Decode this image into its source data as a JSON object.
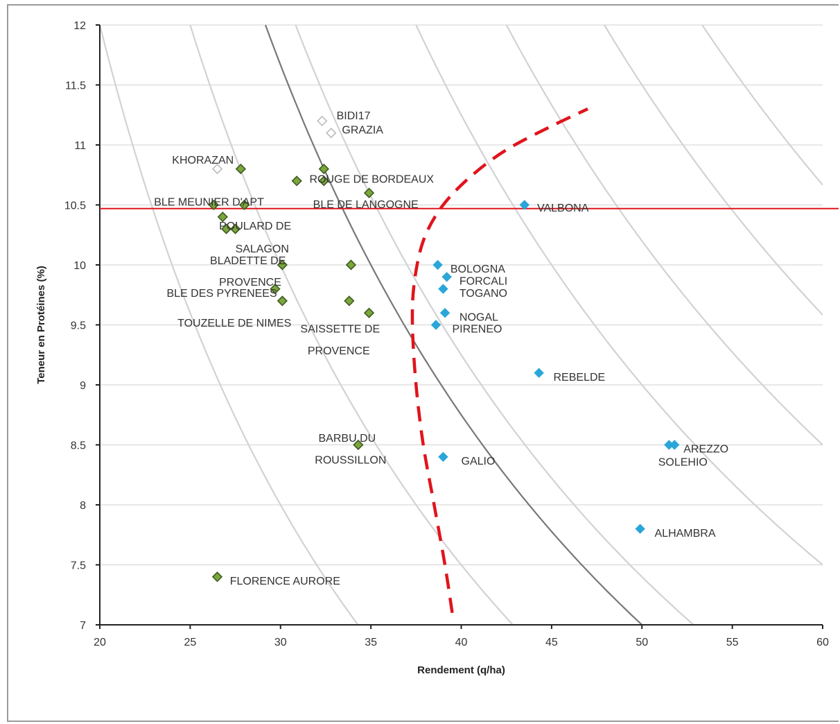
{
  "chart_data": {
    "type": "scatter",
    "xlabel": "Rendement (q/ha)",
    "ylabel": "Teneur en Protéines (%)",
    "xlim": [
      20,
      60
    ],
    "ylim": [
      7,
      12
    ],
    "x_ticks": [
      "20",
      "25",
      "30",
      "35",
      "40",
      "45",
      "50",
      "55",
      "60"
    ],
    "y_ticks": [
      "7",
      "7.5",
      "8",
      "8.5",
      "9",
      "9.5",
      "10",
      "10.5",
      "11",
      "11.5",
      "12"
    ],
    "grid": "horizontal",
    "colors": {
      "green": "#7aa63e",
      "blue": "#2aa6d9",
      "hollow": "#bbbbbb",
      "red": "#e0141c",
      "dark_curve": "#777777",
      "light_curve": "#d2d2d2"
    },
    "reference_line_y": 10.47,
    "points": [
      {
        "x": 32.3,
        "y": 11.2,
        "group": "hollow"
      },
      {
        "x": 32.8,
        "y": 11.1,
        "group": "hollow"
      },
      {
        "x": 26.5,
        "y": 10.8,
        "group": "hollow"
      },
      {
        "x": 27.8,
        "y": 10.8,
        "group": "green"
      },
      {
        "x": 30.9,
        "y": 10.7,
        "group": "green"
      },
      {
        "x": 32.4,
        "y": 10.8,
        "group": "green"
      },
      {
        "x": 32.4,
        "y": 10.7,
        "group": "green"
      },
      {
        "x": 34.9,
        "y": 10.6,
        "group": "green"
      },
      {
        "x": 26.3,
        "y": 10.5,
        "group": "green"
      },
      {
        "x": 28.0,
        "y": 10.5,
        "group": "green"
      },
      {
        "x": 26.8,
        "y": 10.4,
        "group": "green"
      },
      {
        "x": 27.0,
        "y": 10.3,
        "group": "green"
      },
      {
        "x": 27.5,
        "y": 10.3,
        "group": "green"
      },
      {
        "x": 30.1,
        "y": 10.0,
        "group": "green"
      },
      {
        "x": 33.9,
        "y": 10.0,
        "group": "green"
      },
      {
        "x": 29.7,
        "y": 9.8,
        "group": "green"
      },
      {
        "x": 30.1,
        "y": 9.7,
        "group": "green"
      },
      {
        "x": 33.8,
        "y": 9.7,
        "group": "green"
      },
      {
        "x": 34.9,
        "y": 9.6,
        "group": "green"
      },
      {
        "x": 34.3,
        "y": 8.5,
        "group": "green"
      },
      {
        "x": 26.5,
        "y": 7.4,
        "group": "green"
      },
      {
        "x": 43.5,
        "y": 10.5,
        "group": "blue"
      },
      {
        "x": 38.7,
        "y": 10.0,
        "group": "blue"
      },
      {
        "x": 39.2,
        "y": 9.9,
        "group": "blue"
      },
      {
        "x": 39.0,
        "y": 9.8,
        "group": "blue"
      },
      {
        "x": 39.1,
        "y": 9.6,
        "group": "blue"
      },
      {
        "x": 38.6,
        "y": 9.5,
        "group": "blue"
      },
      {
        "x": 44.3,
        "y": 9.1,
        "group": "blue"
      },
      {
        "x": 39.0,
        "y": 8.4,
        "group": "blue"
      },
      {
        "x": 51.5,
        "y": 8.5,
        "group": "blue"
      },
      {
        "x": 51.8,
        "y": 8.5,
        "group": "blue"
      },
      {
        "x": 49.9,
        "y": 7.8,
        "group": "blue"
      }
    ],
    "labels": [
      {
        "text": "BIDI17",
        "x": 33.1,
        "y": 11.25,
        "anchor": "start"
      },
      {
        "text": "GRAZIA",
        "x": 33.4,
        "y": 11.13,
        "anchor": "start"
      },
      {
        "text": "KHORAZAN",
        "x": 24.0,
        "y": 10.88,
        "anchor": "start"
      },
      {
        "text": "ROUGE DE BORDEAUX",
        "x": 31.6,
        "y": 10.72,
        "anchor": "start"
      },
      {
        "text": "BLE MEUNIER D'APT",
        "x": 23.0,
        "y": 10.53,
        "anchor": "start"
      },
      {
        "text": "BLE DE LANGOGNE",
        "x": 31.8,
        "y": 10.51,
        "anchor": "start"
      },
      {
        "text": "VALBONA",
        "x": 44.2,
        "y": 10.48,
        "anchor": "start"
      },
      {
        "text": "POULARD DE",
        "x": 26.6,
        "y": 10.33,
        "anchor": "start"
      },
      {
        "text": "SALAGON",
        "x": 27.5,
        "y": 10.14,
        "anchor": "start"
      },
      {
        "text": "BLADETTE DE",
        "x": 26.1,
        "y": 10.04,
        "anchor": "start"
      },
      {
        "text": "BOLOGNA",
        "x": 39.4,
        "y": 9.97,
        "anchor": "start"
      },
      {
        "text": "PROVENCE",
        "x": 26.6,
        "y": 9.86,
        "anchor": "start"
      },
      {
        "text": "FORCALI",
        "x": 39.9,
        "y": 9.87,
        "anchor": "start"
      },
      {
        "text": "BLE DES PYRENEES",
        "x": 23.7,
        "y": 9.77,
        "anchor": "start"
      },
      {
        "text": "TOGANO",
        "x": 39.9,
        "y": 9.77,
        "anchor": "start"
      },
      {
        "text": "NOGAL",
        "x": 39.9,
        "y": 9.57,
        "anchor": "start"
      },
      {
        "text": "TOUZELLE DE NIMES",
        "x": 24.3,
        "y": 9.52,
        "anchor": "start"
      },
      {
        "text": "SAISSETTE DE",
        "x": 31.1,
        "y": 9.47,
        "anchor": "start"
      },
      {
        "text": "PIRENEO",
        "x": 39.5,
        "y": 9.47,
        "anchor": "start"
      },
      {
        "text": "PROVENCE",
        "x": 31.5,
        "y": 9.29,
        "anchor": "start"
      },
      {
        "text": "REBELDE",
        "x": 45.1,
        "y": 9.07,
        "anchor": "start"
      },
      {
        "text": "BARBU DU",
        "x": 32.1,
        "y": 8.56,
        "anchor": "start"
      },
      {
        "text": "AREZZO",
        "x": 52.3,
        "y": 8.47,
        "anchor": "start"
      },
      {
        "text": "ROUSSILLON",
        "x": 31.9,
        "y": 8.38,
        "anchor": "start"
      },
      {
        "text": "GALIO",
        "x": 40.0,
        "y": 8.37,
        "anchor": "start"
      },
      {
        "text": "SOLEHIO",
        "x": 50.9,
        "y": 8.36,
        "anchor": "start"
      },
      {
        "text": "ALHAMBRA",
        "x": 50.7,
        "y": 7.77,
        "anchor": "start"
      },
      {
        "text": "FLORENCE AURORE",
        "x": 27.2,
        "y": 7.37,
        "anchor": "start"
      }
    ],
    "light_curves_k": [
      240,
      300,
      370,
      450,
      510,
      575,
      640
    ],
    "dark_curve_k": 350,
    "red_dashed_curve": [
      [
        39.5,
        7.1
      ],
      [
        39.1,
        7.5
      ],
      [
        38.5,
        8.0
      ],
      [
        37.9,
        8.5
      ],
      [
        37.5,
        9.0
      ],
      [
        37.3,
        9.5
      ],
      [
        37.4,
        9.85
      ],
      [
        37.9,
        10.2
      ],
      [
        38.9,
        10.48
      ],
      [
        40.4,
        10.72
      ],
      [
        42.4,
        10.95
      ],
      [
        44.9,
        11.15
      ],
      [
        47.0,
        11.3
      ]
    ]
  }
}
